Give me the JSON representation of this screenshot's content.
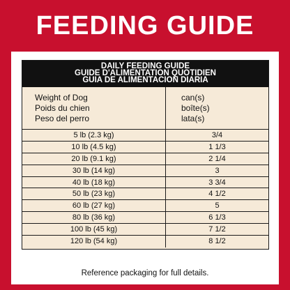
{
  "banner": {
    "title": "FEEDING GUIDE"
  },
  "table": {
    "heading": [
      "DAILY FEEDING GUIDE",
      "GUIDE D'ALIMENTATION QUOTIDIEN",
      "GUIA DE ALIMENTACION DIARIA"
    ],
    "weight_header": [
      "Weight of Dog",
      "Poids du chien",
      "Peso del perro"
    ],
    "amount_header": [
      "can(s)",
      "boîte(s)",
      "lata(s)"
    ],
    "rows": [
      {
        "weight": "5 lb (2.3 kg)",
        "amount": "3/4"
      },
      {
        "weight": "10 lb (4.5 kg)",
        "amount": "1 1/3"
      },
      {
        "weight": "20 lb (9.1 kg)",
        "amount": "2 1/4"
      },
      {
        "weight": "30 lb (14 kg)",
        "amount": "3"
      },
      {
        "weight": "40 lb (18 kg)",
        "amount": "3 3/4"
      },
      {
        "weight": "50 lb (23 kg)",
        "amount": "4 1/2"
      },
      {
        "weight": "60 lb (27 kg)",
        "amount": "5"
      },
      {
        "weight": "80 lb (36 kg)",
        "amount": "6 1/3"
      },
      {
        "weight": "100 lb (45 kg)",
        "amount": "7 1/2"
      },
      {
        "weight": "120 lb (54 kg)",
        "amount": "8 1/2"
      }
    ]
  },
  "footnote": "Reference packaging for full details.",
  "colors": {
    "brand_red": "#c8102e",
    "table_bg": "#f6ead8",
    "header_bg": "#111111"
  }
}
